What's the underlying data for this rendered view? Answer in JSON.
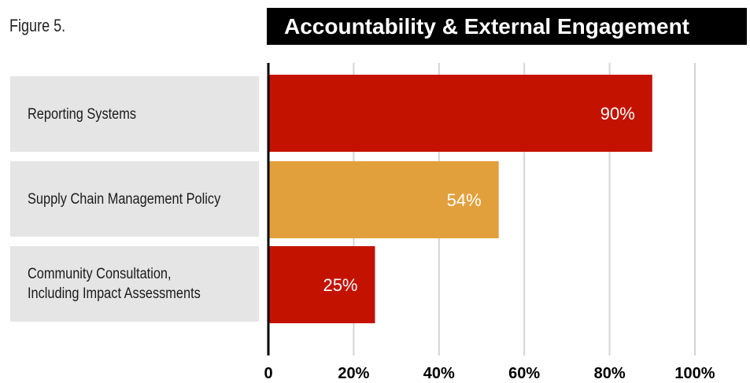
{
  "figure_label": "Figure 5.",
  "chart_data": {
    "type": "bar",
    "orientation": "horizontal",
    "title": "Accountability & External Engagement",
    "categories": [
      "Reporting Systems",
      "Supply Chain Management Policy",
      "Community Consultation,\nIncluding Impact Assessments"
    ],
    "values": [
      90,
      54,
      25
    ],
    "value_labels": [
      "90%",
      "54%",
      "25%"
    ],
    "bar_colors": [
      "#c41200",
      "#e2a03c",
      "#c41200"
    ],
    "xlim": [
      0,
      100
    ],
    "xticks": [
      0,
      20,
      40,
      60,
      80,
      100
    ],
    "xtick_labels": [
      "0",
      "20%",
      "40%",
      "60%",
      "80%",
      "100%"
    ],
    "grid": true,
    "grid_color": "#d4d4d4",
    "xlabel": "",
    "ylabel": ""
  }
}
